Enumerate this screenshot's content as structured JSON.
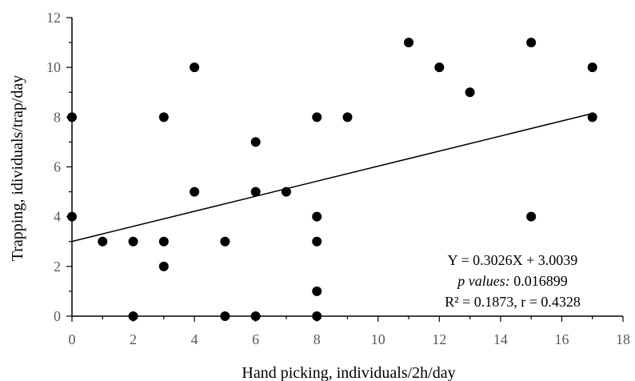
{
  "chart_data": {
    "type": "scatter",
    "title": "",
    "xlabel": "Hand picking, individuals/2h/day",
    "ylabel": "Trapping, idividuals/trap/day",
    "xlim": [
      0,
      18
    ],
    "ylim": [
      0,
      12
    ],
    "xticks": [
      "0",
      "2",
      "4",
      "6",
      "8",
      "10",
      "12",
      "14",
      "16",
      "18"
    ],
    "yticks": [
      "0",
      "2",
      "4",
      "6",
      "8",
      "10",
      "12"
    ],
    "grid": false,
    "series": [
      {
        "x": [
          0,
          0,
          1,
          2,
          2,
          3,
          3,
          3,
          4,
          4,
          5,
          5,
          6,
          6,
          6,
          7,
          8,
          8,
          8,
          8,
          8,
          9,
          11,
          12,
          13,
          15,
          15,
          17,
          17
        ],
        "y": [
          8,
          4,
          3,
          3,
          0,
          8,
          3,
          2,
          10,
          5,
          3,
          0,
          7,
          5,
          0,
          5,
          8,
          4,
          3,
          1,
          0,
          8,
          11,
          10,
          9,
          11,
          4,
          10,
          8
        ]
      }
    ],
    "trendline": {
      "slope": 0.3026,
      "intercept": 3.0039
    },
    "annotations": {
      "equation": "Y = 0.3026X + 3.0039",
      "p_label": "p values:",
      "p_value": " 0.016899",
      "r_stats": "R² = 0.1873, r = 0.4328"
    },
    "colors": {
      "points": "#000000",
      "axis": "#000000",
      "tick_text": "#595959"
    }
  }
}
